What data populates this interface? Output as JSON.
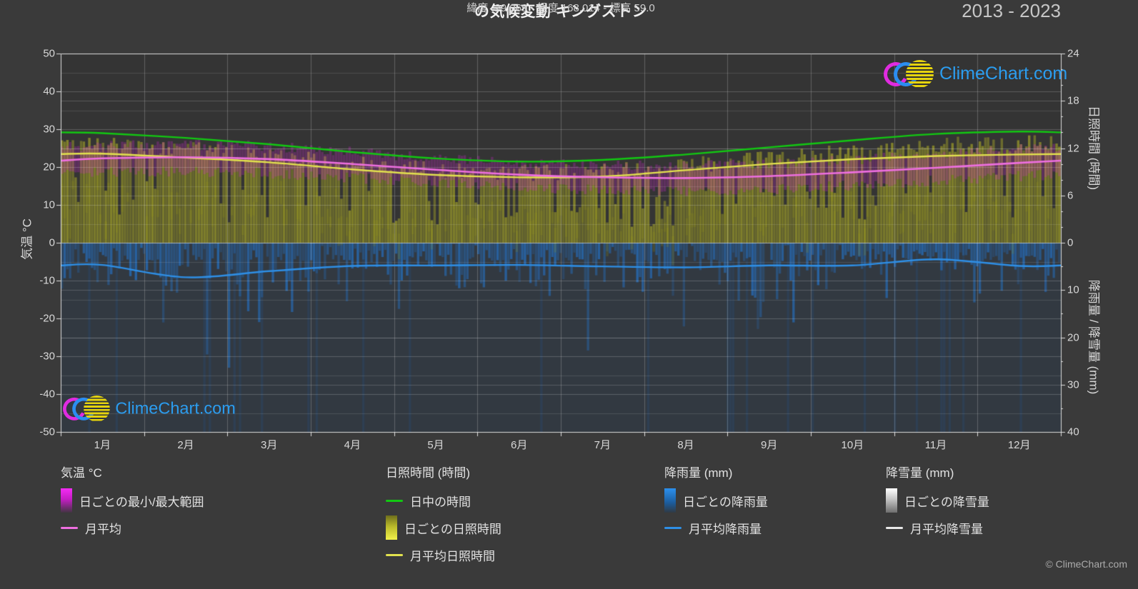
{
  "title": "の気候変動 キングストン",
  "subtitle": "緯度 -29.069 - 経度 168.014 - 標高 59.0",
  "year_range": "2013 - 2023",
  "watermark": "ClimeChart.com",
  "copyright": "© ClimeChart.com",
  "colors": {
    "background": "#3a3a3a",
    "plot_background": "#343434",
    "daylight_line": "#12c812",
    "sunshine_line": "#e2e24e",
    "temp_mean_line": "#ee6fe0",
    "rain_line": "#2e8fe6",
    "snow_line": "#e8e8e8",
    "sun_bar": "#c8c823",
    "temp_range_bar": "#d428d4",
    "rain_bar": "#2377cd",
    "logo_text": "#2b9df0"
  },
  "chart_data": {
    "type": "line",
    "title": "の気候変動 キングストン",
    "months": [
      "1月",
      "2月",
      "3月",
      "4月",
      "5月",
      "6月",
      "7月",
      "8月",
      "9月",
      "10月",
      "11月",
      "12月"
    ],
    "axis_left": {
      "label": "気温 °C",
      "min": -50,
      "max": 50,
      "ticks": [
        50,
        40,
        30,
        20,
        10,
        0,
        -10,
        -20,
        -30,
        -40,
        -50
      ]
    },
    "axis_right_sun": {
      "label": "日照時間 (時間)",
      "min": 0,
      "max": 24,
      "ticks": [
        24,
        18,
        12,
        6,
        0
      ]
    },
    "axis_right_precip": {
      "label": "降雨量 / 降雪量 (mm)",
      "min": 0,
      "max": 40,
      "ticks": [
        10,
        20,
        30,
        40
      ]
    },
    "grid": "on",
    "series": [
      {
        "id": "daylight",
        "name": "日中の時間 (時間)",
        "axis": "sun",
        "color": "#12c812",
        "values": [
          13.9,
          13.3,
          12.5,
          11.5,
          10.7,
          10.3,
          10.5,
          11.2,
          12.1,
          13.0,
          13.8,
          14.1
        ]
      },
      {
        "id": "sunshine_avg",
        "name": "月平均日照時間 (時間)",
        "axis": "sun",
        "color": "#e2e24e",
        "values": [
          11.3,
          10.8,
          10.2,
          9.3,
          8.6,
          8.3,
          8.4,
          9.2,
          10.0,
          10.6,
          11.0,
          11.2
        ]
      },
      {
        "id": "temp_mean",
        "name": "月平均気温 (°C)",
        "axis": "temp",
        "color": "#ee6fe0",
        "values": [
          22.3,
          22.6,
          22.1,
          20.8,
          19.3,
          18.0,
          17.3,
          17.1,
          17.6,
          18.6,
          19.8,
          21.1
        ]
      },
      {
        "id": "temp_max_daily",
        "name": "日ごとの最高気温の月平均 (°C)",
        "axis": "temp",
        "color": "#d428d4",
        "values": [
          25.8,
          26.0,
          25.5,
          24.0,
          22.4,
          21.1,
          20.4,
          20.3,
          20.8,
          21.9,
          23.3,
          24.7
        ]
      },
      {
        "id": "temp_min_daily",
        "name": "日ごとの最低気温の月平均 (°C)",
        "axis": "temp",
        "color": "#d428d4",
        "values": [
          18.6,
          18.9,
          18.4,
          17.2,
          15.8,
          14.6,
          13.9,
          13.6,
          14.1,
          15.1,
          16.4,
          17.6
        ]
      },
      {
        "id": "rain_avg",
        "name": "月平均降雨量 (mm/日)",
        "axis": "precip",
        "color": "#2e8fe6",
        "values": [
          4.7,
          7.3,
          6.0,
          4.9,
          4.8,
          4.7,
          5.0,
          5.2,
          4.8,
          4.8,
          3.5,
          4.9
        ]
      },
      {
        "id": "snow_avg",
        "name": "月平均降雪量 (mm/日)",
        "axis": "precip",
        "color": "#e8e8e8",
        "values": [
          0,
          0,
          0,
          0,
          0,
          0,
          0,
          0,
          0,
          0,
          0,
          0
        ]
      }
    ]
  },
  "legend": {
    "groups": [
      {
        "title": "気温 °C",
        "items": [
          {
            "label": "日ごとの最小/最大範囲"
          },
          {
            "label": "月平均"
          }
        ]
      },
      {
        "title": "日照時間 (時間)",
        "items": [
          {
            "label": "日中の時間"
          },
          {
            "label": "日ごとの日照時間"
          },
          {
            "label": "月平均日照時間"
          }
        ]
      },
      {
        "title": "降雨量 (mm)",
        "items": [
          {
            "label": "日ごとの降雨量"
          },
          {
            "label": "月平均降雨量"
          }
        ]
      },
      {
        "title": "降雪量 (mm)",
        "items": [
          {
            "label": "日ごとの降雪量"
          },
          {
            "label": "月平均降雪量"
          }
        ]
      }
    ]
  }
}
